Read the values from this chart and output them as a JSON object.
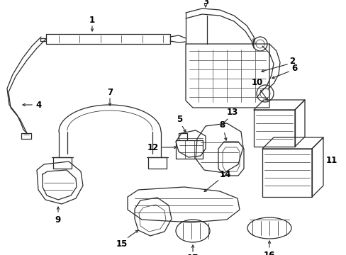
{
  "background_color": "#ffffff",
  "line_color": "#2a2a2a",
  "label_color": "#000000",
  "fig_width": 4.89,
  "fig_height": 3.6,
  "dpi": 100,
  "lw": 0.9,
  "label_fontsize": 8.5
}
